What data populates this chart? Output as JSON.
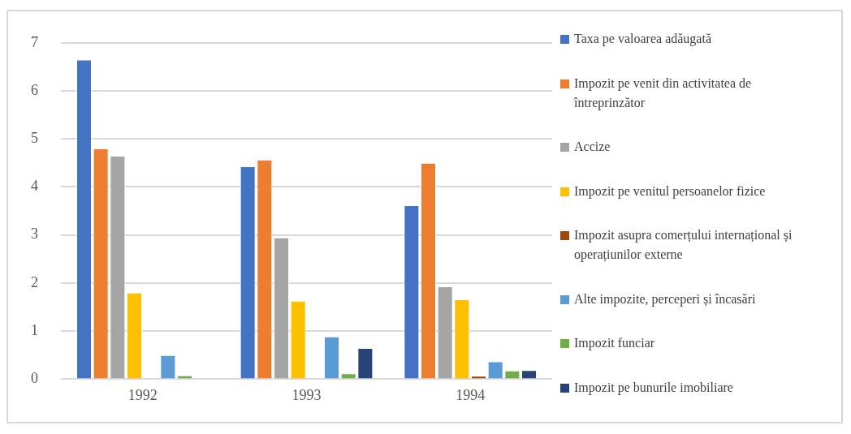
{
  "chart_data": {
    "type": "bar",
    "categories": [
      "1992",
      "1993",
      "1994"
    ],
    "series": [
      {
        "name": "Taxa pe valoarea adăugată",
        "color": "#4472c4",
        "values": [
          6.65,
          4.43,
          3.62
        ]
      },
      {
        "name": "Impozit pe venit din activitatea de întreprinzător",
        "color": "#ed7d31",
        "values": [
          4.8,
          4.57,
          4.5
        ]
      },
      {
        "name": "Accize",
        "color": "#a5a5a5",
        "values": [
          4.65,
          2.95,
          1.93
        ]
      },
      {
        "name": "Impozit pe venitul persoanelor fizice",
        "color": "#ffc000",
        "values": [
          1.8,
          1.63,
          1.66
        ]
      },
      {
        "name": "Impozit asupra comerțului internațional și operațiunilor externe",
        "color": "#9e480e",
        "values": [
          null,
          null,
          0.07
        ]
      },
      {
        "name": "Alte impozite, perceperi și încasări",
        "color": "#5b9bd5",
        "values": [
          0.5,
          0.89,
          0.37
        ]
      },
      {
        "name": "Impozit funciar",
        "color": "#70ad47",
        "values": [
          0.08,
          0.12,
          0.18
        ]
      },
      {
        "name": "Impozit pe bunurile imobiliare",
        "color": "#264478",
        "values": [
          null,
          0.65,
          0.19
        ]
      }
    ],
    "ylim": [
      0,
      7
    ],
    "yticks": [
      0,
      1,
      2,
      3,
      4,
      5,
      6,
      7
    ],
    "grid": "y",
    "legend": "right"
  }
}
